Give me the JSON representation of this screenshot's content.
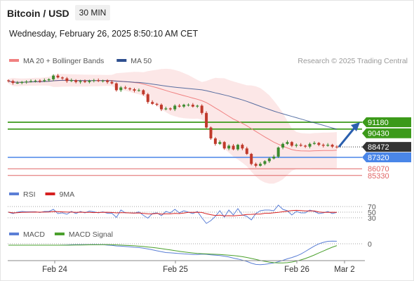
{
  "header": {
    "title": "Bitcoin / USD",
    "timeframe": "30 MIN",
    "datetime": "Wednesday, February 26, 2025 8:50:10 AM CET"
  },
  "legend_main": [
    {
      "label": "MA 20 + Bollinger Bands",
      "color": "#f08080"
    },
    {
      "label": "MA 50",
      "color": "#2e4f8f"
    }
  ],
  "research_credit": "Research © 2025 Trading Central",
  "legend_rsi": [
    {
      "label": "RSI",
      "color": "#5b7fd6"
    },
    {
      "label": "9MA",
      "color": "#d62020"
    }
  ],
  "legend_macd": [
    {
      "label": "MACD",
      "color": "#5b7fd6"
    },
    {
      "label": "MACD Signal",
      "color": "#4aa02c"
    }
  ],
  "colors": {
    "resistance": "#3c9a1a",
    "pivot": "#4a86e8",
    "support": "#e06666",
    "current_price": "#333333",
    "candle_up": "#3c8a2e",
    "candle_down": "#c0392b",
    "forecast_arrow": "#2a5fae"
  },
  "chart_data": {
    "type": "candlestick",
    "x_ticks": [
      "Feb 24",
      "Feb 25",
      "Feb 26",
      "Mar 2"
    ],
    "price_levels": [
      {
        "label": "91180",
        "value": 91180,
        "kind": "resistance"
      },
      {
        "label": "90430",
        "value": 90430,
        "kind": "resistance"
      },
      {
        "label": "88472",
        "value": 88472,
        "kind": "current"
      },
      {
        "label": "87320",
        "value": 87320,
        "kind": "pivot"
      },
      {
        "label": "86070",
        "value": 86070,
        "kind": "support"
      },
      {
        "label": "85330",
        "value": 85330,
        "kind": "support"
      }
    ],
    "forecast": {
      "from": 88472,
      "to": 91180,
      "direction": "up"
    },
    "close_series": [
      95700,
      95500,
      95500,
      95600,
      95650,
      95700,
      95750,
      95700,
      95800,
      95900,
      96300,
      96100,
      96000,
      95700,
      95800,
      95600,
      95700,
      95600,
      95750,
      95800,
      95700,
      95750,
      95600,
      95450,
      94700,
      95000,
      94900,
      94800,
      94650,
      94700,
      94250,
      93400,
      93200,
      93100,
      92600,
      92700,
      92600,
      93000,
      92900,
      93100,
      93100,
      92900,
      93000,
      92200,
      90600,
      89400,
      88800,
      89000,
      88300,
      88600,
      88200,
      88700,
      88300,
      87700,
      86600,
      86400,
      86600,
      86900,
      87200,
      87400,
      88400,
      88800,
      89000,
      88600,
      88700,
      88600,
      88500,
      88800,
      88900,
      88700,
      88600,
      88700,
      88500,
      88472
    ],
    "rsi": {
      "levels": [
        70,
        50,
        30
      ]
    },
    "macd": {
      "levels": [
        0
      ]
    }
  }
}
